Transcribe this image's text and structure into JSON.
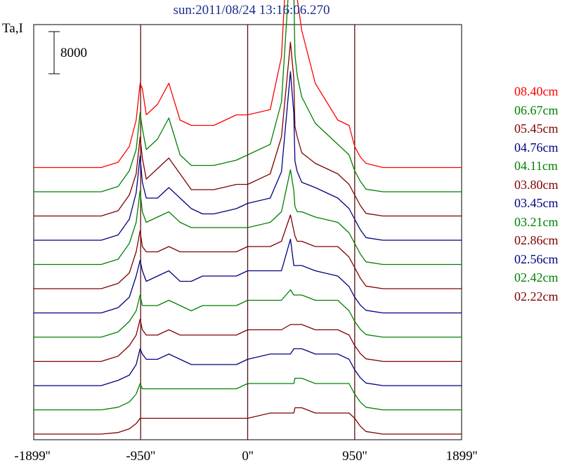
{
  "title": "sun:2011/08/24 13:16:06.270",
  "ylabel": "Ta,I",
  "scale_bar_label": "8000",
  "chart_data": {
    "type": "line",
    "title": "sun:2011/08/24 13:16:06.270",
    "xlabel": "",
    "ylabel": "Ta,I",
    "xlim": [
      -1899,
      1899
    ],
    "x_ticks": [
      "-1899''",
      "-950''",
      "0''",
      "950''",
      "1899''"
    ],
    "x_tick_values": [
      -1899,
      -950,
      0,
      950,
      1899
    ],
    "vlines": [
      -950,
      0,
      950
    ],
    "scale_bar": 8000,
    "legend_position": "right",
    "grid": false,
    "x": [
      -1899,
      -1300,
      -1150,
      -1050,
      -990,
      -955,
      -935,
      -900,
      -800,
      -700,
      -600,
      -500,
      -400,
      -300,
      -100,
      0,
      200,
      300,
      380,
      410,
      420,
      440,
      480,
      600,
      800,
      900,
      950,
      1000,
      1050,
      1200,
      1350,
      1500,
      1899
    ],
    "series": [
      {
        "name": "08.40cm",
        "color": "#ff0000",
        "values": [
          0,
          0,
          1000,
          4000,
          9000,
          16000,
          15000,
          10000,
          12000,
          16000,
          9000,
          8000,
          8000,
          8000,
          10000,
          10000,
          11000,
          21000,
          53000,
          48000,
          36000,
          32000,
          26000,
          16000,
          9000,
          8000,
          4000,
          2000,
          800,
          0,
          0,
          0,
          0
        ]
      },
      {
        "name": "06.67cm",
        "color": "#008000",
        "values": [
          0,
          0,
          1000,
          4000,
          8000,
          15000,
          12000,
          8000,
          10000,
          14000,
          7000,
          5000,
          5000,
          5000,
          6000,
          7000,
          9000,
          17000,
          44000,
          38000,
          26000,
          22000,
          18000,
          13000,
          9000,
          7000,
          4000,
          2000,
          500,
          0,
          0,
          0,
          0
        ]
      },
      {
        "name": "05.45cm",
        "color": "#800000",
        "values": [
          0,
          0,
          1000,
          4000,
          8000,
          15000,
          11000,
          7000,
          9000,
          11000,
          8000,
          5000,
          5000,
          5000,
          6000,
          6000,
          8000,
          15000,
          33000,
          26000,
          17000,
          15000,
          12000,
          10000,
          8000,
          6000,
          4000,
          2000,
          500,
          0,
          0,
          0,
          0
        ]
      },
      {
        "name": "04.76cm",
        "color": "#000080",
        "values": [
          0,
          0,
          1000,
          4000,
          9000,
          16000,
          11000,
          8000,
          8000,
          10000,
          8000,
          6000,
          5000,
          5000,
          6000,
          7000,
          8000,
          13000,
          32000,
          24000,
          15000,
          13000,
          11000,
          10000,
          8000,
          6000,
          4000,
          2000,
          500,
          0,
          0,
          0,
          0
        ]
      },
      {
        "name": "04.11cm",
        "color": "#008000",
        "values": [
          0,
          0,
          1000,
          4000,
          8000,
          14000,
          10000,
          8000,
          9000,
          10000,
          8000,
          7000,
          7000,
          7000,
          7000,
          7000,
          8000,
          10000,
          18000,
          14000,
          11000,
          10000,
          10000,
          9000,
          8000,
          6000,
          4000,
          2000,
          500,
          0,
          0,
          0,
          0
        ]
      },
      {
        "name": "03.80cm",
        "color": "#800000",
        "values": [
          0,
          0,
          1000,
          3000,
          7000,
          11000,
          8000,
          7000,
          7000,
          8000,
          7000,
          7000,
          7000,
          7000,
          7000,
          8000,
          8000,
          9000,
          14000,
          11000,
          10000,
          9000,
          9000,
          8000,
          8000,
          6000,
          4000,
          2000,
          500,
          0,
          0,
          0,
          0
        ]
      },
      {
        "name": "03.45cm",
        "color": "#000080",
        "values": [
          0,
          0,
          1000,
          3000,
          7000,
          10000,
          8000,
          6000,
          7000,
          8000,
          6000,
          6000,
          7000,
          7000,
          7000,
          8000,
          8000,
          8000,
          14000,
          9000,
          9000,
          9000,
          9000,
          8000,
          7000,
          5000,
          3000,
          1500,
          500,
          0,
          0,
          0,
          0
        ]
      },
      {
        "name": "03.21cm",
        "color": "#008000",
        "values": [
          0,
          0,
          1000,
          3000,
          5000,
          8000,
          6000,
          6000,
          6000,
          7000,
          6000,
          5000,
          6000,
          6000,
          6000,
          7000,
          7000,
          7000,
          9000,
          8000,
          8000,
          8000,
          8000,
          7000,
          7000,
          5000,
          3000,
          1500,
          500,
          0,
          0,
          0,
          0
        ]
      },
      {
        "name": "02.86cm",
        "color": "#800000",
        "values": [
          0,
          0,
          1000,
          3000,
          5000,
          8000,
          6000,
          5000,
          5000,
          6000,
          5000,
          5000,
          5000,
          5000,
          5000,
          6000,
          6000,
          6000,
          7000,
          7000,
          7000,
          7000,
          7000,
          6000,
          6000,
          5000,
          3000,
          1500,
          500,
          0,
          0,
          0,
          0
        ]
      },
      {
        "name": "02.56cm",
        "color": "#000080",
        "values": [
          0,
          0,
          1000,
          2000,
          4000,
          7000,
          6000,
          5000,
          5000,
          6000,
          5000,
          4000,
          4000,
          4000,
          4000,
          5000,
          6000,
          6000,
          6000,
          7000,
          7000,
          7000,
          7000,
          6000,
          6000,
          5000,
          3000,
          1500,
          500,
          0,
          0,
          0,
          0
        ]
      },
      {
        "name": "02.42cm",
        "color": "#008000",
        "values": [
          0,
          0,
          500,
          1500,
          3000,
          5000,
          4000,
          4000,
          4000,
          4000,
          4000,
          4000,
          4000,
          4000,
          4000,
          5000,
          5000,
          5000,
          5000,
          5000,
          6000,
          6000,
          6000,
          5000,
          5000,
          5000,
          3000,
          1500,
          500,
          0,
          0,
          0,
          0
        ]
      },
      {
        "name": "02.22cm",
        "color": "#800000",
        "values": [
          0,
          0,
          300,
          1000,
          2000,
          3000,
          3000,
          3000,
          3000,
          3000,
          3000,
          3000,
          3000,
          3000,
          3000,
          3000,
          4000,
          4000,
          4000,
          4000,
          5000,
          5000,
          5000,
          4000,
          4000,
          4000,
          3000,
          1500,
          500,
          0,
          0,
          0,
          0
        ]
      }
    ]
  },
  "colors": {
    "frame": "#000000",
    "vline": "#5a0f0f",
    "title": "#1a2d8c"
  }
}
